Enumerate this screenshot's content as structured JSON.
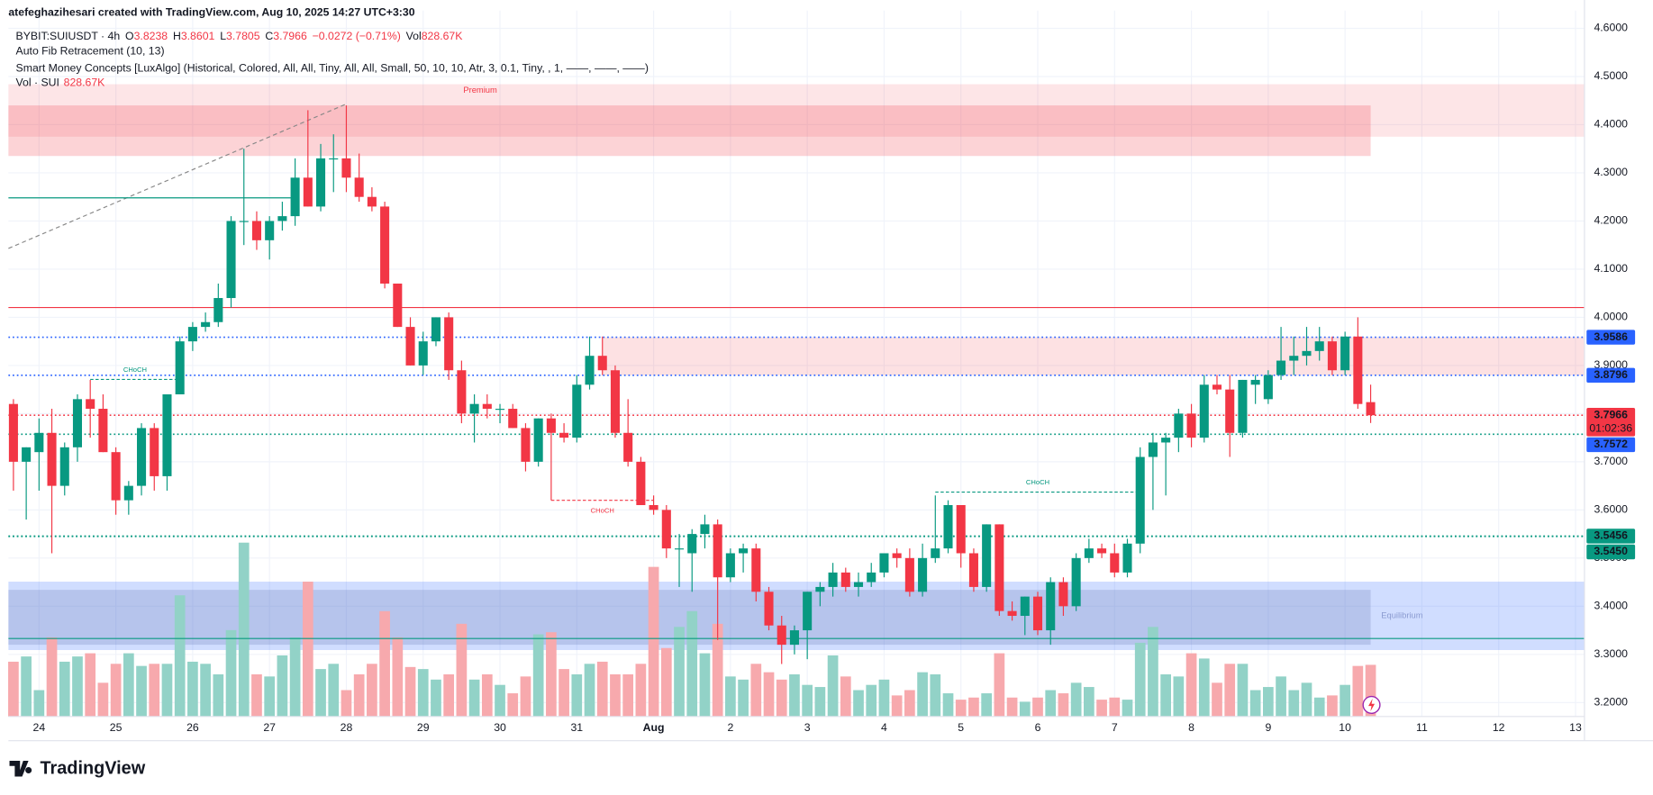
{
  "header": {
    "credit": "atefeghazihesari created with TradingView.com, Aug 10, 2025 14:27 UTC+3:30",
    "symbol": "BYBIT:SUIUSDT · 4h",
    "ohlc": [
      {
        "key": "O",
        "value": "3.8238"
      },
      {
        "key": "H",
        "value": "3.8601"
      },
      {
        "key": "L",
        "value": "3.7805"
      },
      {
        "key": "C",
        "value": "3.7966"
      }
    ],
    "change": "−0.0272 (−0.71%)",
    "volume_key": "Vol",
    "volume_value": "828.67K",
    "indicators": [
      "Auto Fib Retracement (10, 13)",
      "Smart Money Concepts [LuxAlgo] (Historical, Colored, All, All, Tiny, All, All, Small, 50, 10, 10, Atr, 3, 0.1, Tiny, , 1, ——, ——, ——)"
    ],
    "volume_study": "Vol · SUI",
    "volume_study_value": "828.67K"
  },
  "footer": {
    "logo": "TradingView"
  },
  "chart_data": {
    "type": "candlestick",
    "up_color": "#089981",
    "down_color": "#f23645",
    "up_volume_color": "#92d2c7",
    "down_volume_color": "#f7a9ad",
    "grid": true,
    "xlim": [
      -0.39,
      122.7
    ],
    "ylim": [
      3.171,
      4.637
    ],
    "xticks": [
      {
        "value": 2,
        "label": "24"
      },
      {
        "value": 8,
        "label": "25"
      },
      {
        "value": 14,
        "label": "26"
      },
      {
        "value": 20,
        "label": "27"
      },
      {
        "value": 26,
        "label": "28"
      },
      {
        "value": 32,
        "label": "29"
      },
      {
        "value": 38,
        "label": "30"
      },
      {
        "value": 44,
        "label": "31"
      },
      {
        "value": 50,
        "label": "Aug"
      },
      {
        "value": 56,
        "label": "2"
      },
      {
        "value": 62,
        "label": "3"
      },
      {
        "value": 68,
        "label": "4"
      },
      {
        "value": 74,
        "label": "5"
      },
      {
        "value": 80,
        "label": "6"
      },
      {
        "value": 86,
        "label": "7"
      },
      {
        "value": 92,
        "label": "8"
      },
      {
        "value": 98,
        "label": "9"
      },
      {
        "value": 104,
        "label": "10"
      },
      {
        "value": 110,
        "label": "11"
      },
      {
        "value": 116,
        "label": "12"
      },
      {
        "value": 122,
        "label": "13"
      }
    ],
    "yticks": [
      {
        "value": 3.2,
        "label": "3.2000"
      },
      {
        "value": 3.3,
        "label": "3.3000"
      },
      {
        "value": 3.4,
        "label": "3.4000"
      },
      {
        "value": 3.5,
        "label": "3.5000"
      },
      {
        "value": 3.6,
        "label": "3.6000"
      },
      {
        "value": 3.7,
        "label": "3.7000"
      },
      {
        "value": 3.8,
        "label": "3.8000"
      },
      {
        "value": 3.9,
        "label": "3.9000"
      },
      {
        "value": 4.0,
        "label": "4.0000"
      },
      {
        "value": 4.1,
        "label": "4.1000"
      },
      {
        "value": 4.2,
        "label": "4.2000"
      },
      {
        "value": 4.3,
        "label": "4.3000"
      },
      {
        "value": 4.4,
        "label": "4.4000"
      },
      {
        "value": 4.5,
        "label": "4.5000"
      },
      {
        "value": 4.6,
        "label": "4.6000"
      }
    ],
    "candles": {
      "open": [
        3.82,
        3.7,
        3.72,
        3.76,
        3.65,
        3.73,
        3.83,
        3.81,
        3.72,
        3.62,
        3.65,
        3.77,
        3.67,
        3.84,
        3.95,
        3.98,
        3.99,
        4.04,
        4.2,
        4.2,
        4.16,
        4.2,
        4.21,
        4.29,
        4.23,
        4.33,
        4.33,
        4.29,
        4.25,
        4.23,
        4.07,
        3.98,
        3.9,
        3.95,
        4.0,
        3.89,
        3.8,
        3.82,
        3.81,
        3.81,
        3.77,
        3.7,
        3.79,
        3.76,
        3.75,
        3.86,
        3.92,
        3.89,
        3.76,
        3.7,
        3.61,
        3.6,
        3.52,
        3.51,
        3.55,
        3.57,
        3.46,
        3.51,
        3.52,
        3.43,
        3.36,
        3.32,
        3.35,
        3.43,
        3.44,
        3.47,
        3.44,
        3.45,
        3.47,
        3.51,
        3.5,
        3.43,
        3.5,
        3.52,
        3.61,
        3.51,
        3.44,
        3.57,
        3.39,
        3.38,
        3.42,
        3.35,
        3.45,
        3.4,
        3.5,
        3.52,
        3.51,
        3.47,
        3.53,
        3.71,
        3.74,
        3.75,
        3.8,
        3.75,
        3.86,
        3.85,
        3.76,
        3.86,
        3.83,
        3.88,
        3.91,
        3.92,
        3.93,
        3.95,
        3.89,
        3.96,
        3.8238
      ],
      "high": [
        3.83,
        3.73,
        3.79,
        3.81,
        3.74,
        3.84,
        3.87,
        3.84,
        3.73,
        3.66,
        3.78,
        3.78,
        3.84,
        3.96,
        3.99,
        4.01,
        4.07,
        4.21,
        4.35,
        4.22,
        4.21,
        4.24,
        4.33,
        4.43,
        4.36,
        4.38,
        4.44,
        4.34,
        4.27,
        4.24,
        4.07,
        4.0,
        3.97,
        4.0,
        4.01,
        3.91,
        3.84,
        3.84,
        3.82,
        3.82,
        3.78,
        3.79,
        3.8,
        3.78,
        3.88,
        3.96,
        3.96,
        3.9,
        3.83,
        3.71,
        3.63,
        3.61,
        3.55,
        3.56,
        3.59,
        3.58,
        3.52,
        3.53,
        3.53,
        3.44,
        3.38,
        3.36,
        3.43,
        3.45,
        3.49,
        3.48,
        3.47,
        3.49,
        3.51,
        3.52,
        3.52,
        3.53,
        3.63,
        3.62,
        3.61,
        3.52,
        3.57,
        3.57,
        3.41,
        3.42,
        3.43,
        3.46,
        3.46,
        3.51,
        3.54,
        3.53,
        3.53,
        3.54,
        3.73,
        3.76,
        3.76,
        3.81,
        3.82,
        3.88,
        3.88,
        3.88,
        3.87,
        3.88,
        3.89,
        3.98,
        3.96,
        3.98,
        3.98,
        3.96,
        3.97,
        4.0,
        3.8601
      ],
      "low": [
        3.64,
        3.58,
        3.64,
        3.51,
        3.63,
        3.7,
        3.75,
        3.72,
        3.59,
        3.59,
        3.63,
        3.64,
        3.64,
        3.84,
        3.93,
        3.97,
        3.98,
        4.02,
        4.15,
        4.14,
        4.12,
        4.18,
        4.19,
        4.23,
        4.22,
        4.26,
        4.26,
        4.24,
        4.22,
        4.06,
        3.98,
        3.9,
        3.88,
        3.94,
        3.87,
        3.78,
        3.74,
        3.79,
        3.78,
        3.77,
        3.68,
        3.69,
        3.62,
        3.74,
        3.74,
        3.85,
        3.88,
        3.75,
        3.69,
        3.61,
        3.59,
        3.5,
        3.44,
        3.43,
        3.52,
        3.33,
        3.45,
        3.47,
        3.41,
        3.35,
        3.28,
        3.3,
        3.29,
        3.4,
        3.42,
        3.43,
        3.42,
        3.44,
        3.46,
        3.48,
        3.42,
        3.42,
        3.49,
        3.51,
        3.48,
        3.43,
        3.43,
        3.38,
        3.37,
        3.34,
        3.34,
        3.32,
        3.38,
        3.39,
        3.49,
        3.5,
        3.46,
        3.46,
        3.51,
        3.6,
        3.63,
        3.72,
        3.73,
        3.74,
        3.84,
        3.71,
        3.75,
        3.82,
        3.82,
        3.87,
        3.88,
        3.9,
        3.91,
        3.88,
        3.88,
        3.81,
        3.7805
      ],
      "close": [
        3.7,
        3.73,
        3.76,
        3.65,
        3.73,
        3.83,
        3.81,
        3.72,
        3.62,
        3.65,
        3.77,
        3.67,
        3.84,
        3.95,
        3.98,
        3.99,
        4.04,
        4.2,
        4.2,
        4.16,
        4.2,
        4.21,
        4.29,
        4.23,
        4.33,
        4.33,
        4.29,
        4.25,
        4.23,
        4.07,
        3.98,
        3.9,
        3.95,
        4.0,
        3.89,
        3.8,
        3.82,
        3.81,
        3.81,
        3.77,
        3.7,
        3.79,
        3.76,
        3.75,
        3.86,
        3.92,
        3.89,
        3.76,
        3.7,
        3.61,
        3.6,
        3.52,
        3.52,
        3.55,
        3.57,
        3.46,
        3.51,
        3.52,
        3.43,
        3.36,
        3.32,
        3.35,
        3.43,
        3.44,
        3.47,
        3.44,
        3.45,
        3.47,
        3.51,
        3.5,
        3.43,
        3.5,
        3.52,
        3.61,
        3.51,
        3.44,
        3.57,
        3.39,
        3.38,
        3.42,
        3.35,
        3.45,
        3.4,
        3.5,
        3.52,
        3.51,
        3.47,
        3.53,
        3.71,
        3.74,
        3.75,
        3.8,
        3.75,
        3.86,
        3.85,
        3.76,
        3.87,
        3.87,
        3.88,
        3.91,
        3.92,
        3.93,
        3.95,
        3.89,
        3.96,
        3.82,
        3.7966
      ]
    },
    "volume": [
      879,
      963,
      423,
      1268,
      879,
      963,
      1014,
      541,
      845,
      1014,
      811,
      845,
      845,
      1944,
      879,
      845,
      676,
      1386,
      2789,
      676,
      642,
      980,
      1268,
      2163,
      761,
      845,
      423,
      676,
      845,
      1690,
      1268,
      794,
      761,
      592,
      676,
      1487,
      592,
      676,
      507,
      372,
      642,
      1318,
      1352,
      761,
      676,
      845,
      879,
      676,
      676,
      845,
      2400,
      1099,
      1437,
      1690,
      1014,
      1487,
      642,
      592,
      845,
      710,
      592,
      676,
      507,
      473,
      980,
      642,
      423,
      507,
      592,
      338,
      423,
      710,
      676,
      372,
      270,
      304,
      372,
      1014,
      304,
      237,
      304,
      423,
      372,
      541,
      473,
      270,
      304,
      270,
      1183,
      1437,
      676,
      642,
      1014,
      930,
      541,
      845,
      845,
      423,
      473,
      642,
      423,
      541,
      304,
      338,
      507,
      811,
      828.67
    ],
    "zones": [
      {
        "top": 4.484,
        "bottom": 4.375,
        "from": -0.39,
        "to": 122.7,
        "color": "rgba(242,54,69,0.13)",
        "label": "Premium"
      },
      {
        "top": 4.44,
        "bottom": 4.335,
        "from": -0.39,
        "to": 106,
        "color": "rgba(242,54,69,0.22)"
      },
      {
        "top": 3.9586,
        "bottom": 3.8796,
        "from": 46,
        "to": 122.7,
        "color": "rgba(242,54,69,0.15)"
      },
      {
        "top": 3.451,
        "bottom": 3.309,
        "from": -0.39,
        "to": 122.7,
        "color": "rgba(41,98,255,0.22)",
        "label": "Equilibrium"
      },
      {
        "top": 3.434,
        "bottom": 3.32,
        "from": -0.39,
        "to": 106,
        "color": "rgba(90,110,170,0.22)"
      }
    ],
    "levels": [
      {
        "value": 4.0203,
        "color": "#f23645",
        "style": "solid"
      },
      {
        "value": 3.9586,
        "label": "3.9586",
        "color": "#2962ff",
        "label_color": "#2962ff",
        "style": "dotted"
      },
      {
        "value": 3.8796,
        "label": "3.8796",
        "color": "#2962ff",
        "label_color": "#2962ff",
        "style": "dotted"
      },
      {
        "value": 3.7966,
        "label": "3.7966",
        "color": "#f23645",
        "label_color": "#f23645",
        "style": "dotted",
        "countdown": "01:02:36"
      },
      {
        "value": 3.7572,
        "label": "3.7572",
        "color": "#089981",
        "label_color": "#2962ff",
        "style": "dotted"
      },
      {
        "value": 3.5456,
        "label": "3.5456",
        "color": "#089981",
        "label_color": "#089981",
        "style": "dotted"
      },
      {
        "value": 3.545,
        "label": "3.5450",
        "color": "#089981",
        "label_color": "#089981",
        "style": "dotted"
      },
      {
        "value": 3.333,
        "color": "#089981",
        "style": "solid"
      }
    ],
    "segments": [
      {
        "y1": 4.143,
        "y2": 4.443,
        "from": -0.39,
        "to": 26,
        "color": "#888888",
        "style": "dashed"
      },
      {
        "y1": 4.248,
        "y2": 4.248,
        "from": -0.39,
        "to": 22,
        "color": "#089981",
        "style": "solid"
      }
    ],
    "annotations": [
      {
        "label": "CHoCH",
        "price": 3.871,
        "from": 6,
        "to": 13,
        "color": "#089981",
        "label_side": "above"
      },
      {
        "label": "CHoCH",
        "price": 3.62,
        "from": 42,
        "to": 50,
        "color": "#f23645",
        "label_side": "below"
      },
      {
        "label": "CHoCH",
        "price": 3.637,
        "from": 72,
        "to": 88,
        "color": "#089981",
        "label_side": "above"
      }
    ]
  }
}
